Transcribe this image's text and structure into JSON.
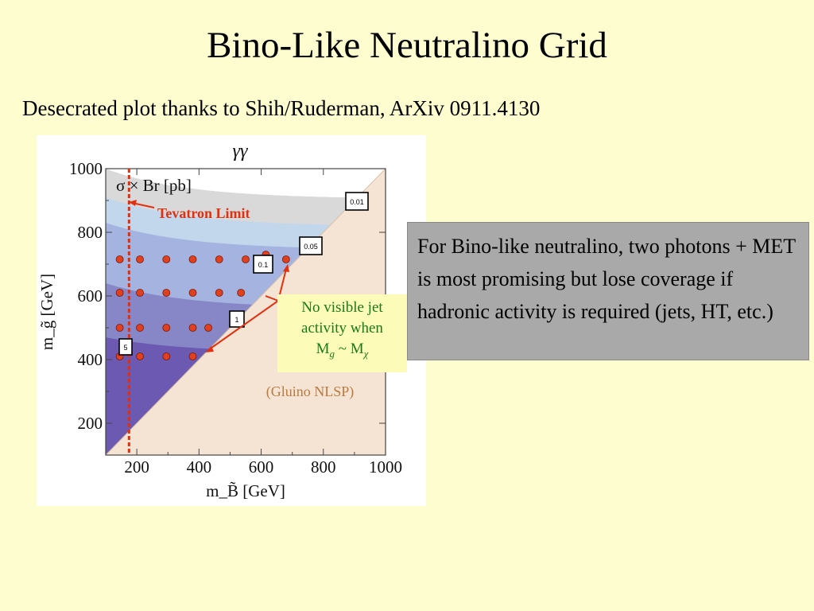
{
  "slide": {
    "title": "Bino-Like Neutralino Grid",
    "subtitle": "Desecrated plot thanks to Shih/Ruderman, ArXiv 0911.4130"
  },
  "callout": {
    "text": "For Bino-like neutralino, two photons + MET is most promising but lose coverage if hadronic activity is required (jets, HT, etc.)"
  },
  "annotation": {
    "line1": "No visible jet",
    "line2": "activity when",
    "line3_prefix": "M",
    "line3_sub1": "g",
    "line3_mid": " ~ M",
    "line3_sub2": "χ"
  },
  "chart_data": {
    "type": "scatter",
    "title": "γγ",
    "xlabel": "m_B̃ [GeV]",
    "ylabel": "m_g̃ [GeV]",
    "legend_title": "σ × Br [pb]",
    "xlim": [
      100,
      1000
    ],
    "ylim": [
      100,
      1000
    ],
    "xticks": [
      200,
      400,
      600,
      800,
      1000
    ],
    "yticks": [
      200,
      400,
      600,
      800,
      1000
    ],
    "contour_levels": [
      "0.01",
      "0.05",
      "0.1",
      "1",
      "5"
    ],
    "region_label": "(Gluino NLSP)",
    "tevatron_limit": {
      "label": "Tevatron Limit",
      "x": 175
    },
    "colors": {
      "band_0_01": "#d9d9d9",
      "band_0_05": "#c2d6ec",
      "band_0_1": "#a4b3e0",
      "band_1": "#8786c6",
      "band_5": "#6b59b2",
      "band_high": "#57399a",
      "nlsp_region": "#f5e4d4",
      "grid_point": "#e04020",
      "tevatron": "#e03010",
      "arrow": "#e03010"
    },
    "grid_points": [
      {
        "x": 145,
        "y": 715
      },
      {
        "x": 210,
        "y": 715
      },
      {
        "x": 295,
        "y": 715
      },
      {
        "x": 380,
        "y": 715
      },
      {
        "x": 465,
        "y": 715
      },
      {
        "x": 550,
        "y": 715
      },
      {
        "x": 615,
        "y": 730
      },
      {
        "x": 680,
        "y": 715
      },
      {
        "x": 145,
        "y": 610
      },
      {
        "x": 210,
        "y": 610
      },
      {
        "x": 295,
        "y": 610
      },
      {
        "x": 380,
        "y": 610
      },
      {
        "x": 465,
        "y": 610
      },
      {
        "x": 535,
        "y": 610
      },
      {
        "x": 145,
        "y": 500
      },
      {
        "x": 210,
        "y": 500
      },
      {
        "x": 295,
        "y": 500
      },
      {
        "x": 380,
        "y": 500
      },
      {
        "x": 430,
        "y": 500
      },
      {
        "x": 145,
        "y": 410
      },
      {
        "x": 210,
        "y": 410
      },
      {
        "x": 295,
        "y": 410
      },
      {
        "x": 380,
        "y": 410
      }
    ]
  }
}
